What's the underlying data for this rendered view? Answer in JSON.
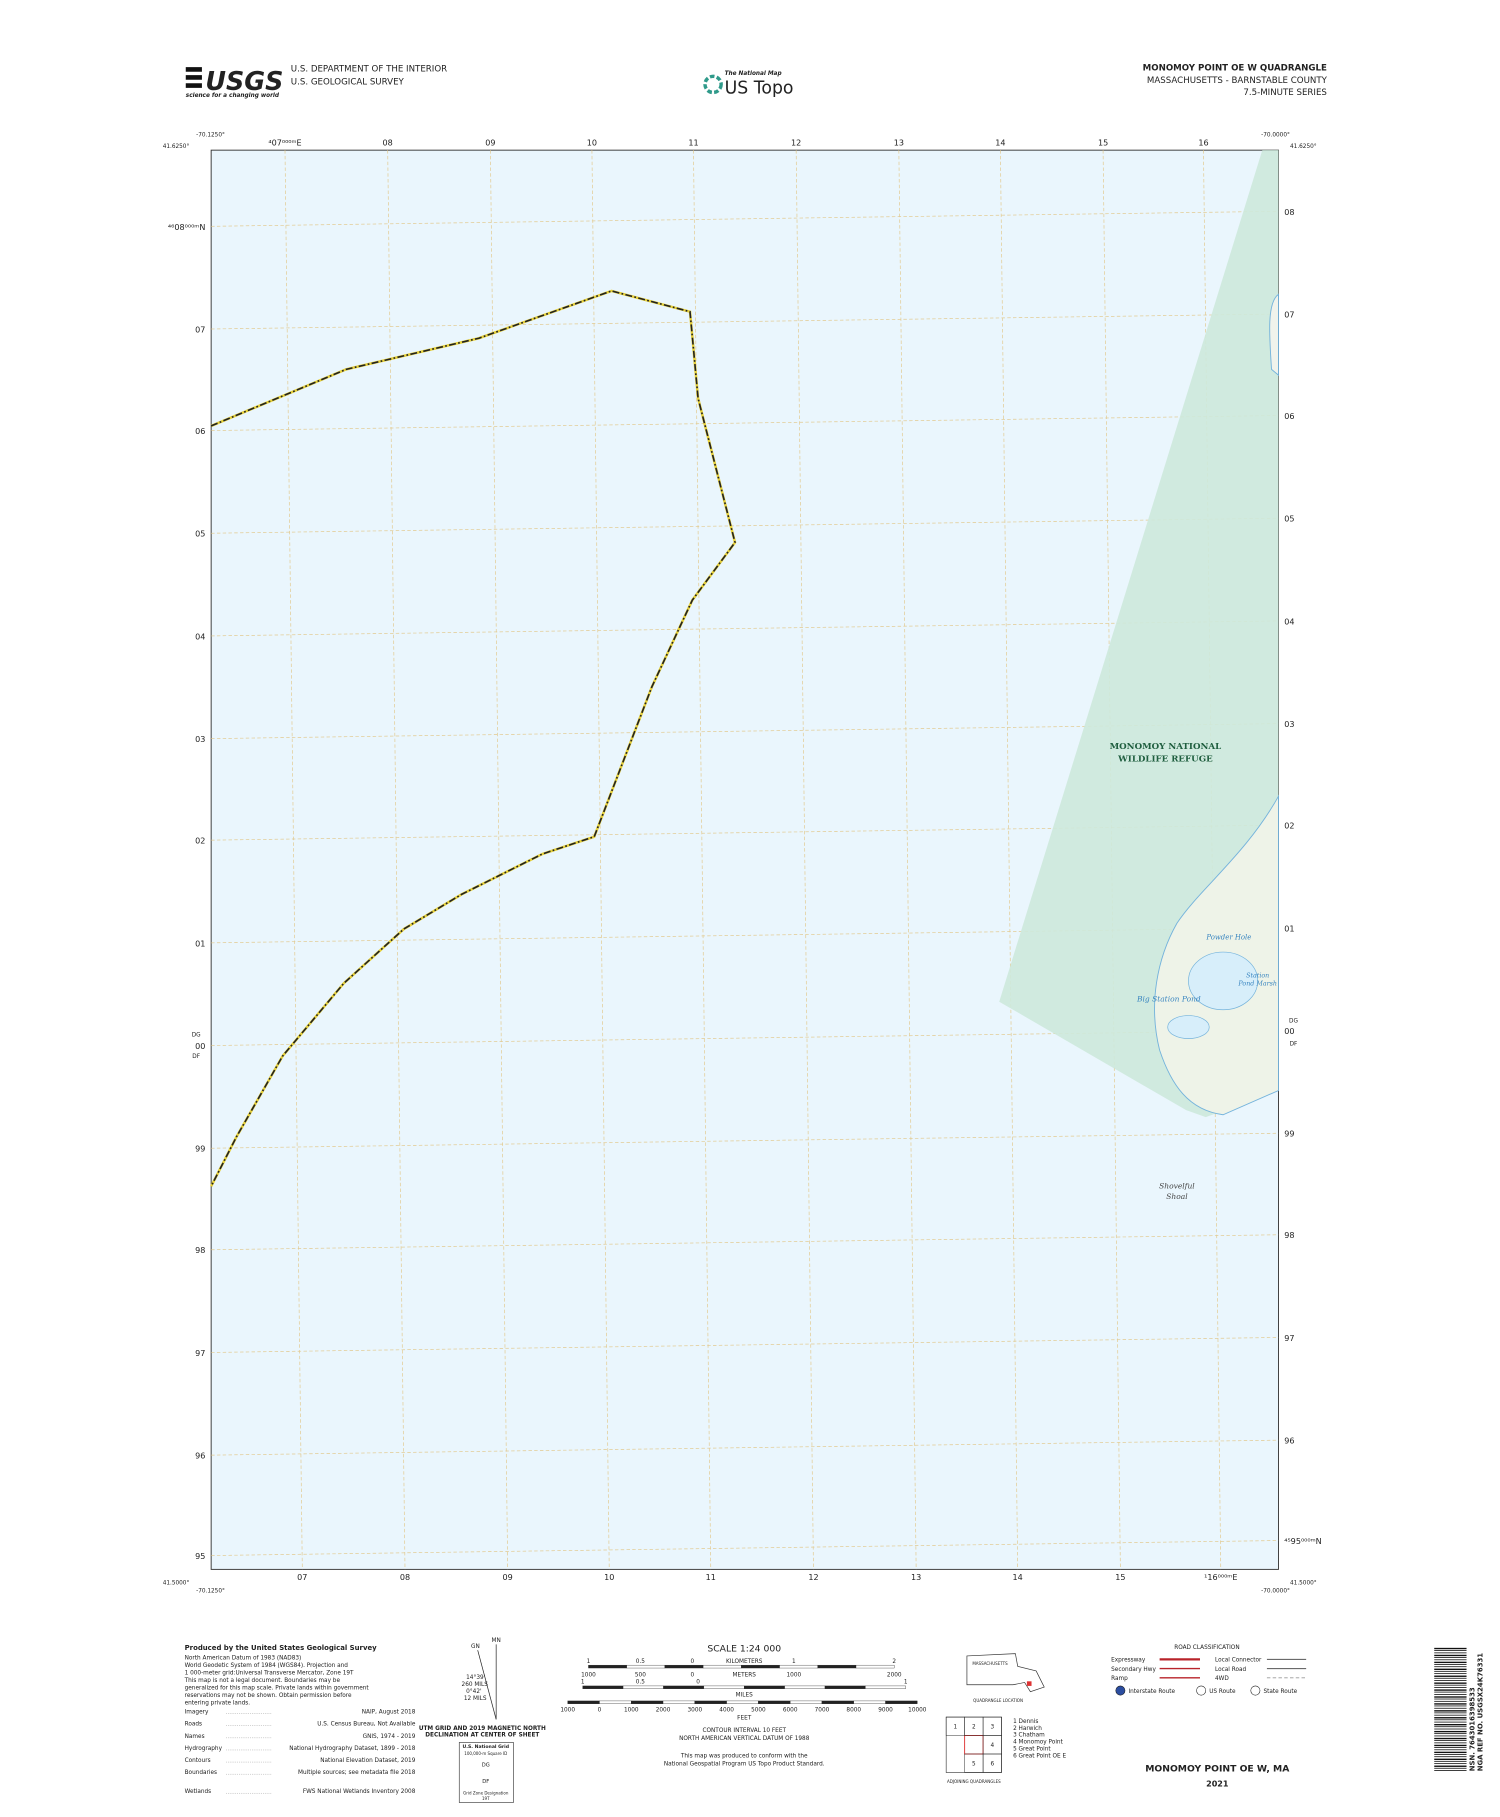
{
  "header": {
    "usgs_logo": "USGS",
    "usgs_tagline": "science for a changing world",
    "agency": [
      "U.S. DEPARTMENT OF THE INTERIOR",
      "U.S. GEOLOGICAL SURVEY"
    ],
    "center_small": "The National Map",
    "center_big": "US Topo",
    "title": "MONOMOY POINT OE W QUADRANGLE",
    "subtitle": "MASSACHUSETTS - BARNSTABLE COUNTY",
    "series": "7.5-MINUTE SERIES"
  },
  "map": {
    "corners": {
      "top_left_lon": "-70.1250°",
      "top_left_lat": "41.6250°",
      "top_right_lon": "-70.0000°",
      "top_right_lat": "41.6250°",
      "bottom_left_lat": "41.5000°",
      "bottom_left_lon": "-70.1250°",
      "bottom_right_lon": "-70.0000°",
      "bottom_right_lat": "41.5000°"
    },
    "top_labels": [
      "⁴07⁰⁰⁰ᵐE",
      "08",
      "09",
      "10",
      "11",
      "12",
      "13",
      "14",
      "15",
      "16"
    ],
    "bottom_labels": [
      "07",
      "08",
      "09",
      "10",
      "11",
      "12",
      "13",
      "14",
      "15",
      "¹16⁰⁰⁰ᵐE"
    ],
    "left_labels": [
      "⁴⁶08⁰⁰⁰ᵐN",
      "07",
      "06",
      "05",
      "04",
      "03",
      "02",
      "01",
      "00",
      "99",
      "98",
      "97",
      "96",
      "95"
    ],
    "right_labels": [
      "08",
      "07",
      "06",
      "05",
      "04",
      "03",
      "02",
      "01",
      "00",
      "99",
      "98",
      "97",
      "96",
      "⁴⁵95⁰⁰⁰ᵐN"
    ],
    "datum_left": [
      "DG",
      "DF"
    ],
    "datum_right": [
      "DG",
      "DF"
    ],
    "refuge": [
      "MONOMOY NATIONAL",
      "WILDLIFE REFUGE"
    ],
    "water_features": {
      "powder_hole": "Powder Hole",
      "station_pond": [
        "Station",
        "Pond Marsh"
      ],
      "big_station_pond": "Big Station Pond"
    },
    "shoal": [
      "Shovelful",
      "Shoal"
    ]
  },
  "footer": {
    "produced_by": "Produced by the United States Geological Survey",
    "notes": [
      "North American Datum of 1983 (NAD83)",
      "World Geodetic System of 1984 (WGS84). Projection and",
      "1 000-meter grid:Universal Transverse Mercator, Zone 19T",
      "This map is not a legal document. Boundaries may be",
      "generalized for this map scale. Private lands within government",
      "reservations may not be shown. Obtain permission before",
      "entering private lands."
    ],
    "sources": [
      [
        "Imagery",
        "NAIP, August 2018"
      ],
      [
        "Roads",
        "U.S. Census Bureau, Not Available"
      ],
      [
        "Names",
        "GNIS, 1974 - 2019"
      ],
      [
        "Hydrography",
        "National Hydrography Dataset, 1899 - 2018"
      ],
      [
        "Contours",
        "National Elevation Dataset, 2019"
      ],
      [
        "Boundaries",
        "Multiple sources; see metadata file 2018"
      ],
      [
        "Wetlands",
        "FWS National Wetlands Inventory 2008"
      ]
    ],
    "declination": {
      "gn": "GN",
      "mn": "MN",
      "angle1": "14°39'",
      "mils1": "260 MILS",
      "angle2": "0°42'",
      "mils2": "12 MILS",
      "caption": [
        "UTM GRID AND 2019 MAGNETIC NORTH",
        "DECLINATION AT CENTER OF SHEET"
      ]
    },
    "grid_zone": {
      "title": "U.S. National Grid",
      "sub": "100,000-m Square ID",
      "ids": [
        "DG",
        "DF"
      ],
      "gzd_title": "Grid Zone Designation",
      "gzd": "19T"
    },
    "scale": {
      "title": "SCALE 1:24 000",
      "km_labels": [
        "1",
        "0.5",
        "0",
        "1",
        "2"
      ],
      "km": "KILOMETERS",
      "m_labels": [
        "1000",
        "500",
        "0",
        "1000",
        "2000"
      ],
      "meters": "METERS",
      "mi_labels": [
        "1",
        "0.5",
        "0",
        "1"
      ],
      "miles": "MILES",
      "ft_labels": [
        "1000",
        "0",
        "1000",
        "2000",
        "3000",
        "4000",
        "5000",
        "6000",
        "7000",
        "8000",
        "9000",
        "10000"
      ],
      "feet": "FEET"
    },
    "contour": [
      "CONTOUR INTERVAL 10 FEET",
      "NORTH AMERICAN VERTICAL DATUM OF 1988"
    ],
    "conform": [
      "This map was produced to conform with the",
      "National Geospatial Program US Topo Product Standard."
    ],
    "location": {
      "state": "MASSACHUSETTS",
      "caption": "QUADRANGLE LOCATION"
    },
    "adjoining": {
      "cells": [
        "1",
        "2",
        "3",
        "4",
        "5",
        "6"
      ],
      "list": [
        "1 Dennis",
        "2 Harwich",
        "3 Chatham",
        "4 Monomoy Point",
        "5 Great Point",
        "6 Great Point OE E"
      ],
      "caption": "ADJOINING QUADRANGLES"
    },
    "roads": {
      "title": "ROAD CLASSIFICATION",
      "left": [
        "Expressway",
        "Secondary Hwy",
        "Ramp"
      ],
      "right": [
        "Local Connector",
        "Local Road",
        "4WD"
      ],
      "shields": [
        "Interstate Route",
        "US Route",
        "State Route"
      ]
    },
    "bottom_title": "MONOMOY POINT OE W,  MA",
    "year": "2021",
    "barcode_text": [
      "NSN. 7643016398533",
      "NGA REF NO. USGSX24K76331"
    ]
  }
}
